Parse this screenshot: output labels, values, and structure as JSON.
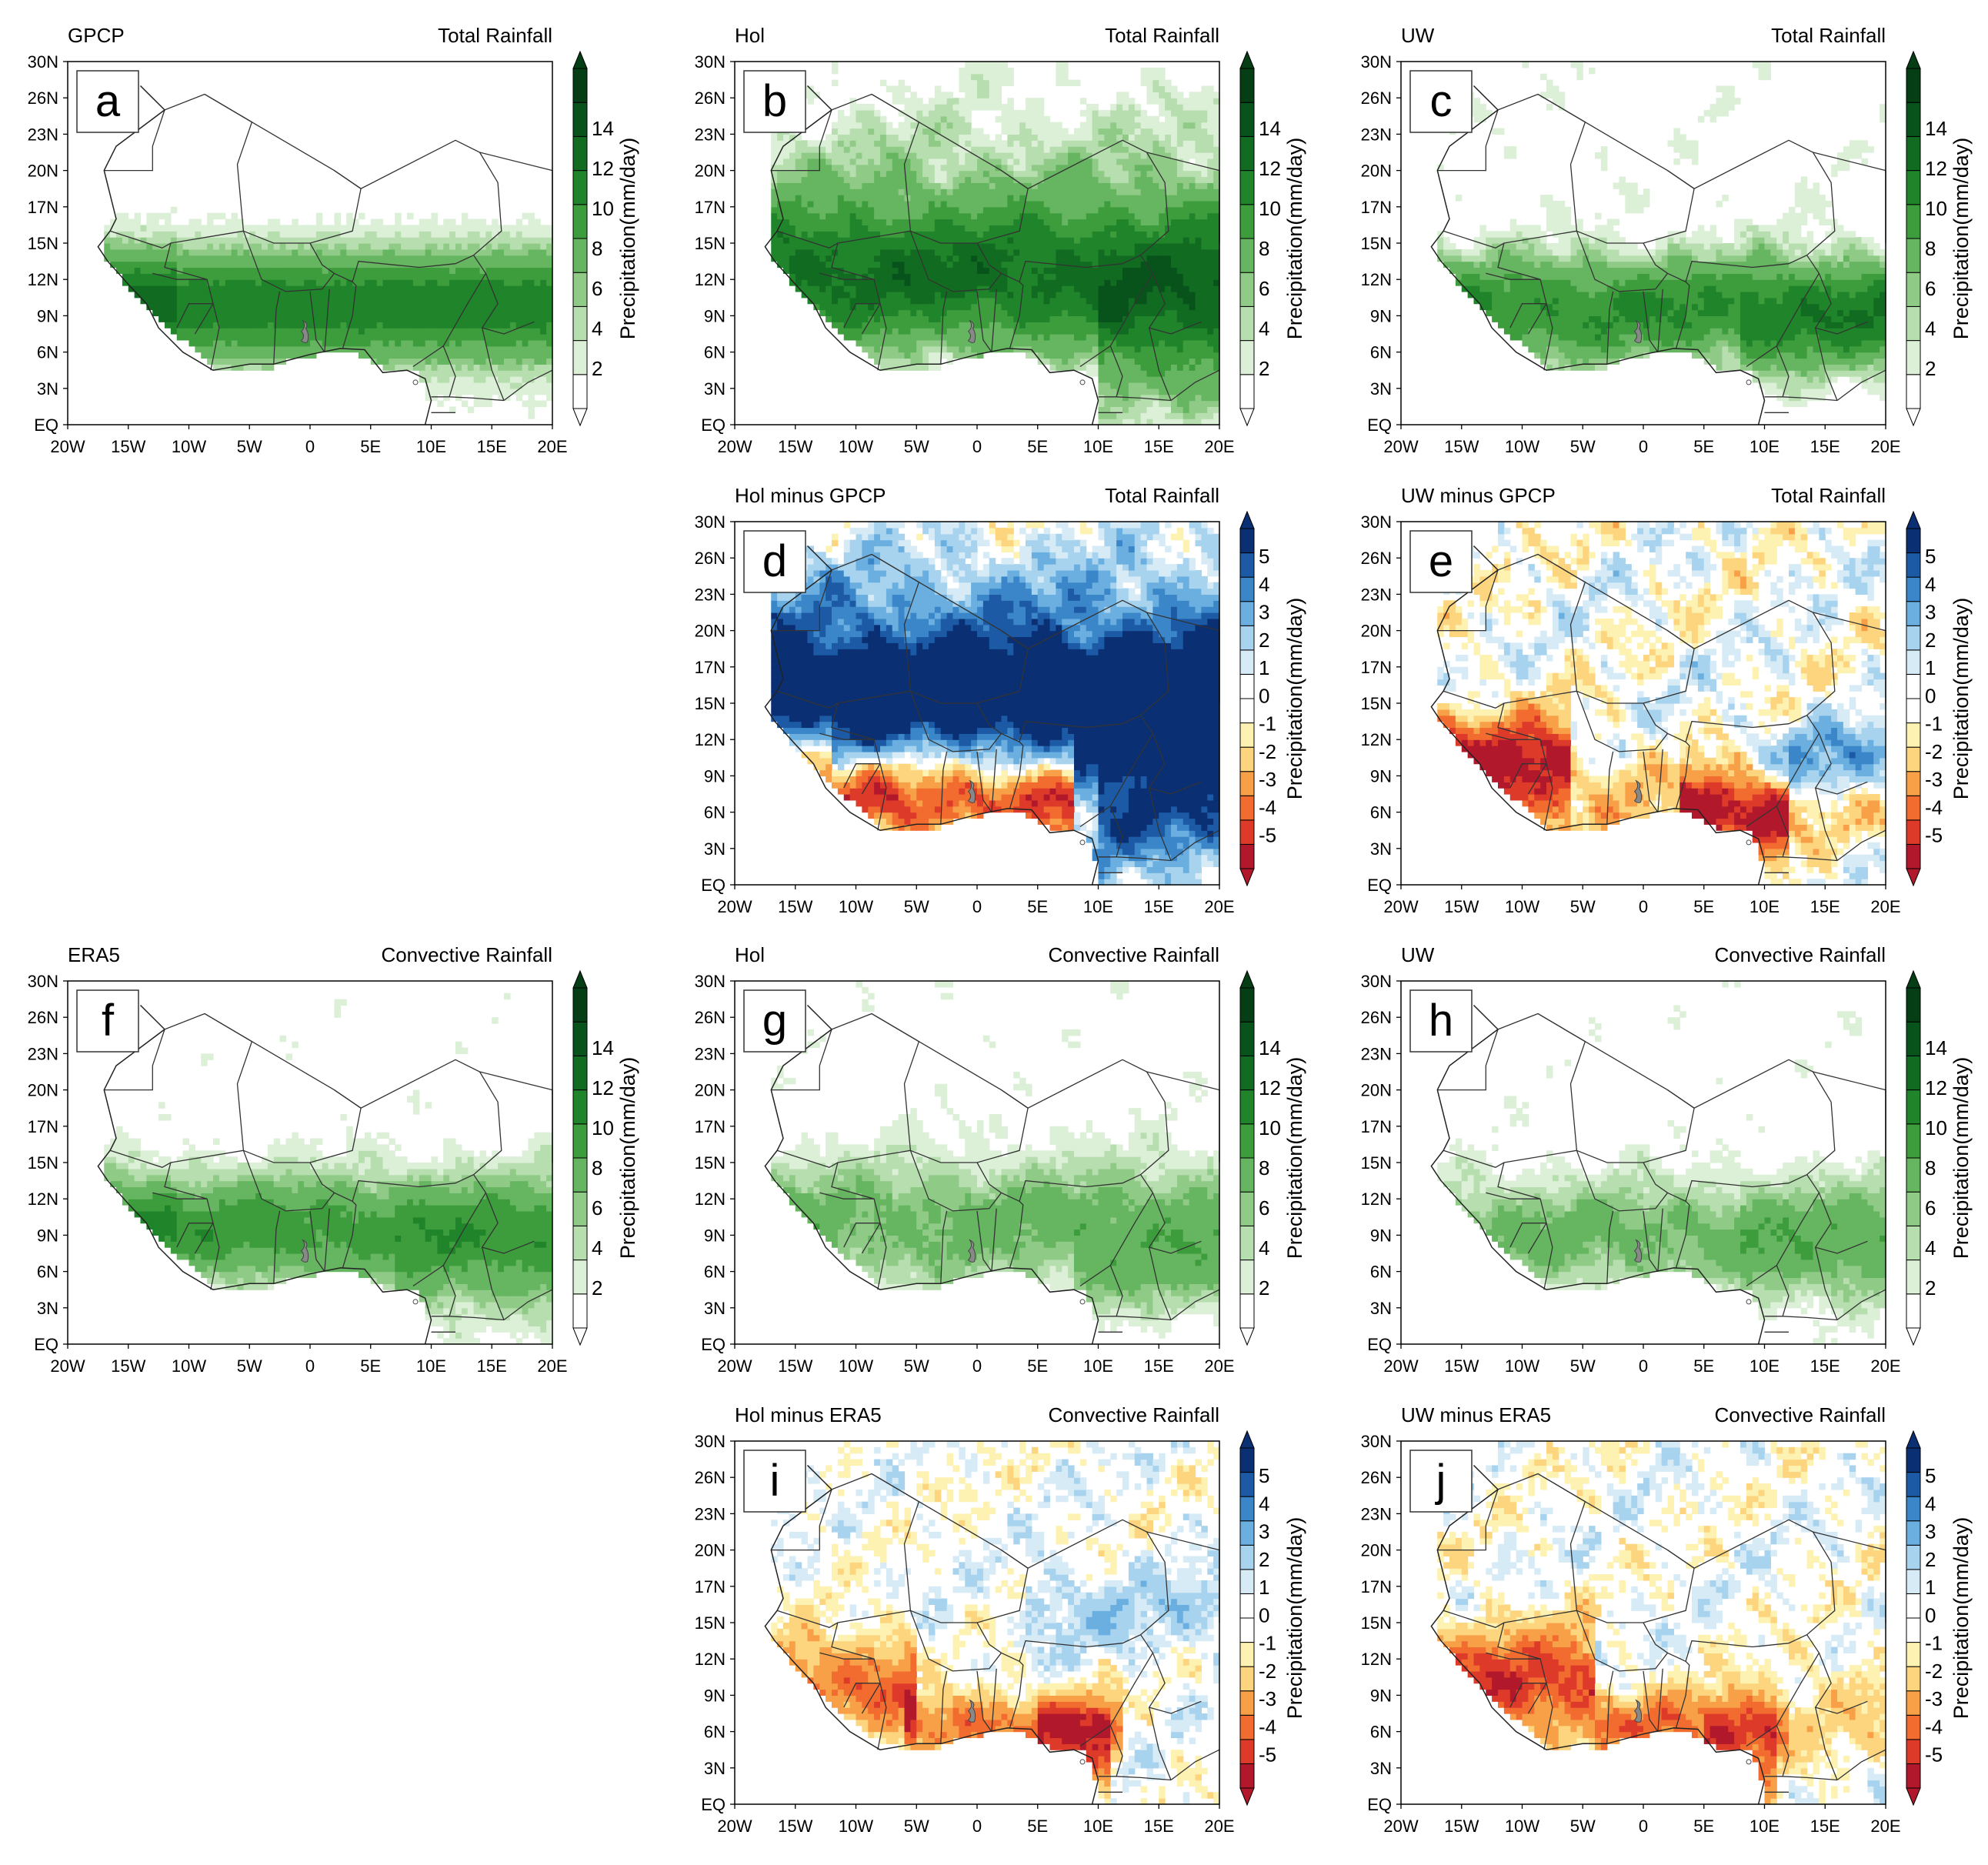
{
  "figure": {
    "lat_labels": [
      "30N",
      "26N",
      "23N",
      "20N",
      "17N",
      "15N",
      "12N",
      "9N",
      "6N",
      "3N",
      "EQ"
    ],
    "lon_labels": [
      "20W",
      "15W",
      "10W",
      "5W",
      "0",
      "5E",
      "10E",
      "15E",
      "20E"
    ],
    "colorbar_title": "Precipitation(mm/day)",
    "abs_scale": {
      "ticks": [
        "2",
        "4",
        "6",
        "8",
        "10",
        "12",
        "14"
      ],
      "colors": [
        "#ffffff",
        "#dcefd7",
        "#b7deaf",
        "#8fcb86",
        "#66b560",
        "#3d9d3c",
        "#1f842a",
        "#116b21",
        "#08531b",
        "#053e15"
      ]
    },
    "diff_scale": {
      "ticks": [
        "-5",
        "-4",
        "-3",
        "-2",
        "-1",
        "0",
        "1",
        "2",
        "3",
        "4",
        "5"
      ],
      "colors": [
        "#b2182b",
        "#dd3a2a",
        "#f26b2f",
        "#f8a048",
        "#fcd57e",
        "#fdf2b2",
        "#ffffff",
        "#ffffff",
        "#d7ebf7",
        "#a8d3ee",
        "#6aafe0",
        "#3a86c8",
        "#1c5aa6",
        "#0b2f73"
      ]
    }
  },
  "panels": [
    {
      "id": "a",
      "left": "GPCP",
      "right": "Total Rainfall",
      "kind": "abs",
      "pattern": "gpcp"
    },
    {
      "id": "b",
      "left": "Hol",
      "right": "Total Rainfall",
      "kind": "abs",
      "pattern": "hol"
    },
    {
      "id": "c",
      "left": "UW",
      "right": "Total Rainfall",
      "kind": "abs",
      "pattern": "uw"
    },
    {
      "id": "d",
      "left": "Hol minus GPCP",
      "right": "Total Rainfall",
      "kind": "diff",
      "pattern": "d"
    },
    {
      "id": "e",
      "left": "UW minus GPCP",
      "right": "Total Rainfall",
      "kind": "diff",
      "pattern": "e"
    },
    {
      "id": "f",
      "left": "ERA5",
      "right": "Convective Rainfall",
      "kind": "abs",
      "pattern": "era5"
    },
    {
      "id": "g",
      "left": "Hol",
      "right": "Convective Rainfall",
      "kind": "abs",
      "pattern": "holc"
    },
    {
      "id": "h",
      "left": "UW",
      "right": "Convective Rainfall",
      "kind": "abs",
      "pattern": "uwc"
    },
    {
      "id": "i",
      "left": "Hol minus ERA5",
      "right": "Convective Rainfall",
      "kind": "diff",
      "pattern": "i"
    },
    {
      "id": "j",
      "left": "UW minus ERA5",
      "right": "Convective Rainfall",
      "kind": "diff",
      "pattern": "j"
    }
  ]
}
